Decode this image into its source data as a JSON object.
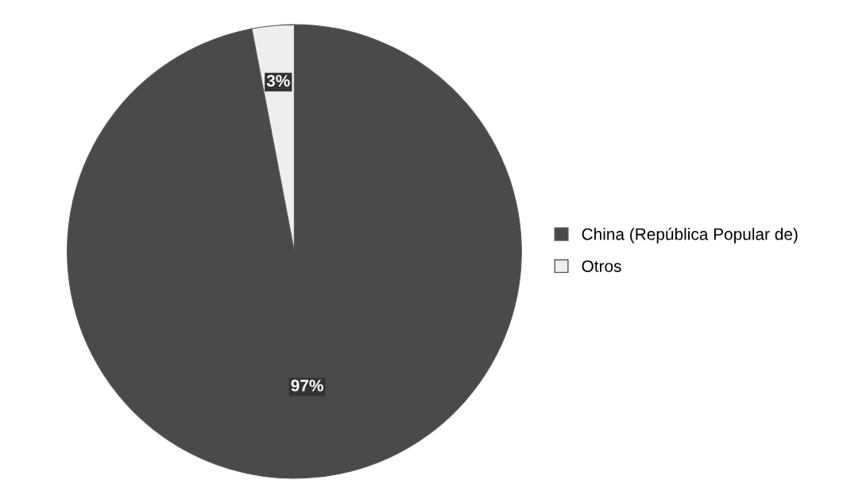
{
  "chart_data": {
    "type": "pie",
    "categories": [
      "China (República Popular de)",
      "Otros"
    ],
    "values": [
      97,
      3
    ],
    "colors": [
      "#4a4a4a",
      "#eeeeee"
    ],
    "value_labels": [
      "97%",
      "3%"
    ],
    "legend": "right"
  }
}
